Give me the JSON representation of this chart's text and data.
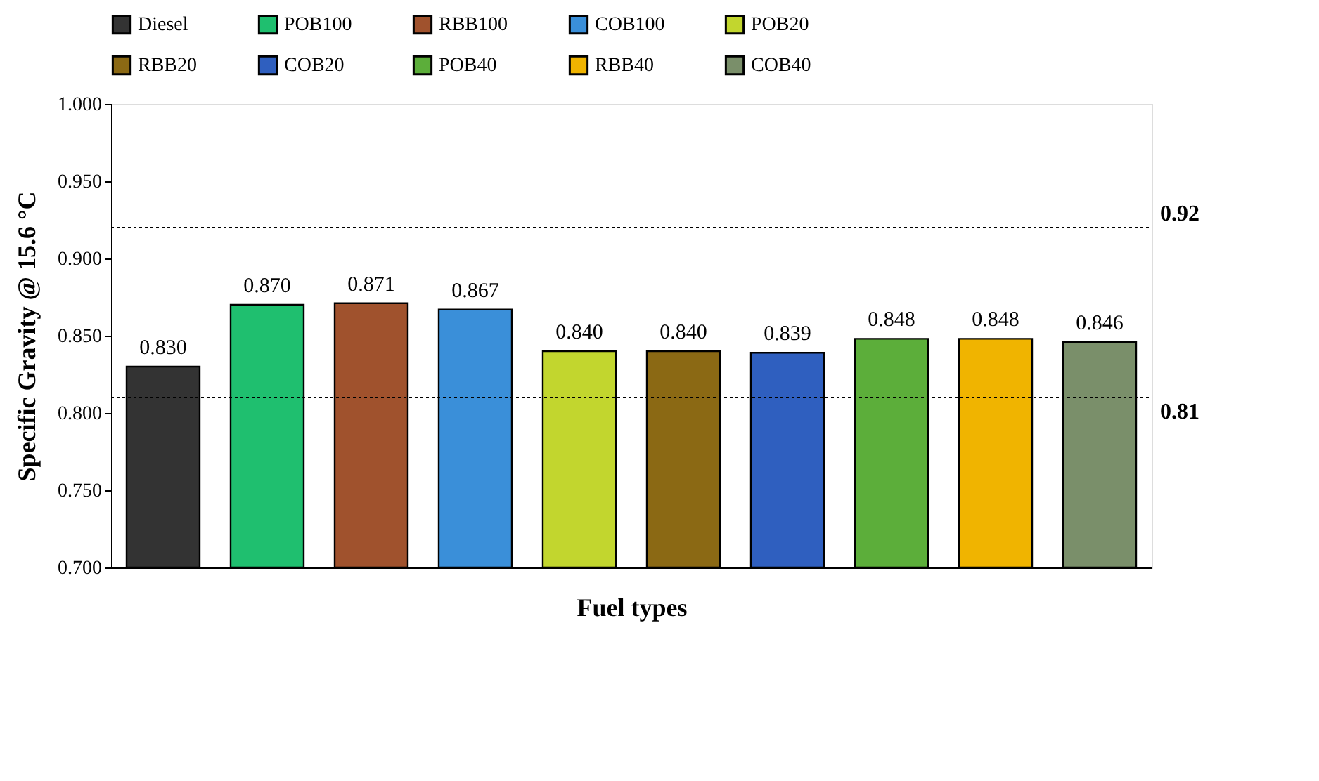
{
  "chart_data": {
    "type": "bar",
    "xlabel": "Fuel types",
    "ylabel": "Specific Gravity @ 15.6 °C",
    "categories": [
      null,
      null,
      null,
      null,
      null,
      null,
      null,
      null,
      null,
      null
    ],
    "series": [
      {
        "name": "Diesel",
        "color": "#333333",
        "values": [
          0.83,
          null,
          null,
          null,
          null,
          null,
          null,
          null,
          null,
          null
        ],
        "value_labels": [
          "0.830",
          null,
          null,
          null,
          null,
          null,
          null,
          null,
          null,
          null
        ]
      },
      {
        "name": "POB100",
        "color": "#1fbf6f",
        "values": [
          null,
          0.87,
          null,
          null,
          null,
          null,
          null,
          null,
          null,
          null
        ],
        "value_labels": [
          null,
          "0.870",
          null,
          null,
          null,
          null,
          null,
          null,
          null,
          null
        ]
      },
      {
        "name": "RBB100",
        "color": "#a0522d",
        "values": [
          null,
          null,
          0.871,
          null,
          null,
          null,
          null,
          null,
          null,
          null
        ],
        "value_labels": [
          null,
          null,
          "0.871",
          null,
          null,
          null,
          null,
          null,
          null,
          null
        ]
      },
      {
        "name": "COB100",
        "color": "#3a8fd9",
        "values": [
          null,
          null,
          null,
          0.867,
          null,
          null,
          null,
          null,
          null,
          null
        ],
        "value_labels": [
          null,
          null,
          null,
          "0.867",
          null,
          null,
          null,
          null,
          null,
          null
        ]
      },
      {
        "name": "POB20",
        "color": "#c2d62e",
        "values": [
          null,
          null,
          null,
          null,
          0.84,
          null,
          null,
          null,
          null,
          null
        ],
        "value_labels": [
          null,
          null,
          null,
          null,
          "0.840",
          null,
          null,
          null,
          null,
          null
        ]
      },
      {
        "name": "RBB20",
        "color": "#8b6914",
        "values": [
          null,
          null,
          null,
          null,
          null,
          0.84,
          null,
          null,
          null,
          null
        ],
        "value_labels": [
          null,
          null,
          null,
          null,
          null,
          "0.840",
          null,
          null,
          null,
          null
        ]
      },
      {
        "name": "COB20",
        "color": "#2f5fbf",
        "values": [
          null,
          null,
          null,
          null,
          null,
          null,
          0.839,
          null,
          null,
          null
        ],
        "value_labels": [
          null,
          null,
          null,
          null,
          null,
          null,
          "0.839",
          null,
          null,
          null
        ]
      },
      {
        "name": "POB40",
        "color": "#5cae3a",
        "values": [
          null,
          null,
          null,
          null,
          null,
          null,
          null,
          0.848,
          null,
          null
        ],
        "value_labels": [
          null,
          null,
          null,
          null,
          null,
          null,
          null,
          "0.848",
          null,
          null
        ]
      },
      {
        "name": "RBB40",
        "color": "#f0b400",
        "values": [
          null,
          null,
          null,
          null,
          null,
          null,
          null,
          null,
          0.848,
          null
        ],
        "value_labels": [
          null,
          null,
          null,
          null,
          null,
          null,
          null,
          null,
          "0.848",
          null
        ]
      },
      {
        "name": "COB40",
        "color": "#7a8f6a",
        "values": [
          null,
          null,
          null,
          null,
          null,
          null,
          null,
          null,
          null,
          0.846
        ],
        "value_labels": [
          null,
          null,
          null,
          null,
          null,
          null,
          null,
          null,
          null,
          "0.846"
        ]
      }
    ],
    "ylim": [
      0.7,
      1.0
    ],
    "yticks": [
      {
        "value": 0.7,
        "label": "0.700"
      },
      {
        "value": 0.75,
        "label": "0.750"
      },
      {
        "value": 0.8,
        "label": "0.800"
      },
      {
        "value": 0.85,
        "label": "0.850"
      },
      {
        "value": 0.9,
        "label": "0.900"
      },
      {
        "value": 0.95,
        "label": "0.950"
      },
      {
        "value": 1.0,
        "label": "1.000"
      }
    ],
    "ref_lines": [
      {
        "axis": "y",
        "value": 0.92,
        "label": "0.92",
        "line_style": "dotted"
      },
      {
        "axis": "y",
        "value": 0.81,
        "label": "0.81",
        "line_style": "dotted"
      }
    ],
    "legend": "top",
    "grid": false,
    "tick_labels": "y"
  }
}
